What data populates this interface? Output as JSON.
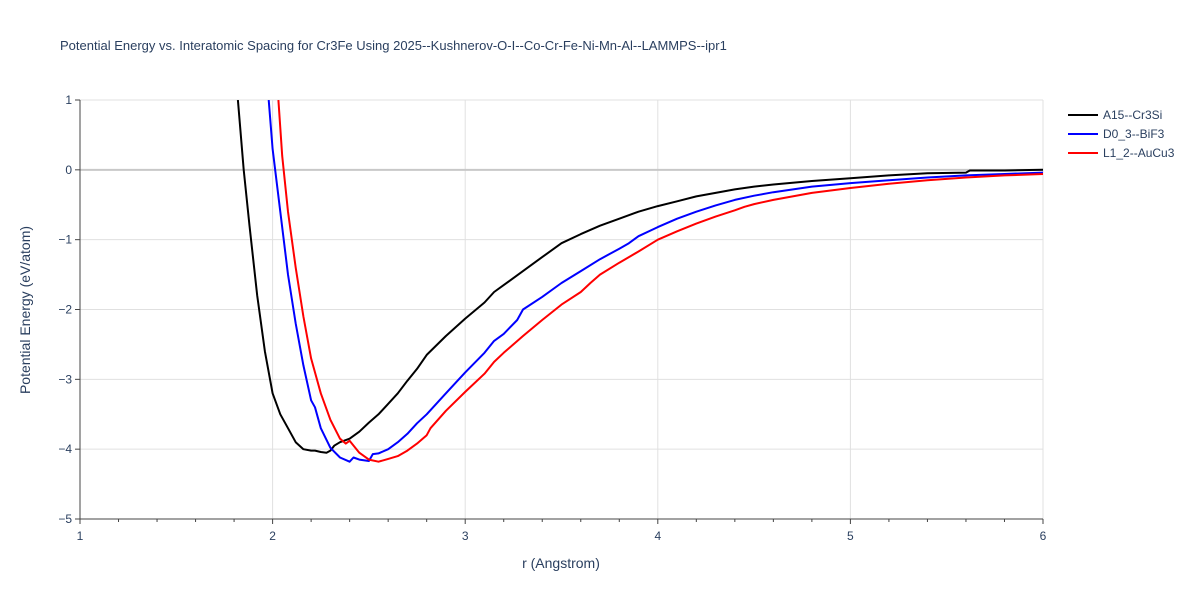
{
  "chart_data": {
    "type": "line",
    "title": "Potential Energy vs. Interatomic Spacing for Cr3Fe Using 2025--Kushnerov-O-I--Co-Cr-Fe-Ni-Mn-Al--LAMMPS--ipr1",
    "xlabel": "r (Angstrom)",
    "ylabel": "Potential Energy (eV/atom)",
    "xlim": [
      1,
      6
    ],
    "ylim": [
      -5,
      1
    ],
    "xticks": [
      1,
      2,
      3,
      4,
      5,
      6
    ],
    "xtick_labels": [
      "1",
      "2",
      "3",
      "4",
      "5",
      "6"
    ],
    "yticks": [
      -5,
      -4,
      -3,
      -2,
      -1,
      0,
      1
    ],
    "ytick_labels": [
      "−5",
      "−4",
      "−3",
      "−2",
      "−1",
      "0",
      "1"
    ],
    "grid": true,
    "legend_position": "top-right",
    "series": [
      {
        "name": "A15--Cr3Si",
        "color": "#000000",
        "x": [
          1.82,
          1.85,
          1.88,
          1.92,
          1.96,
          2.0,
          2.04,
          2.08,
          2.12,
          2.16,
          2.2,
          2.22,
          2.25,
          2.28,
          2.3,
          2.32,
          2.35,
          2.4,
          2.45,
          2.5,
          2.55,
          2.6,
          2.65,
          2.7,
          2.75,
          2.8,
          2.9,
          3.0,
          3.1,
          3.15,
          3.2,
          3.3,
          3.4,
          3.5,
          3.6,
          3.7,
          3.8,
          3.9,
          4.0,
          4.1,
          4.2,
          4.3,
          4.4,
          4.5,
          4.6,
          4.8,
          5.0,
          5.2,
          5.4,
          5.6,
          5.62,
          5.8,
          6.0
        ],
        "y": [
          1.0,
          0.0,
          -0.8,
          -1.8,
          -2.6,
          -3.2,
          -3.5,
          -3.7,
          -3.9,
          -4.0,
          -4.02,
          -4.02,
          -4.04,
          -4.05,
          -4.02,
          -3.95,
          -3.9,
          -3.85,
          -3.75,
          -3.62,
          -3.5,
          -3.35,
          -3.2,
          -3.02,
          -2.85,
          -2.65,
          -2.38,
          -2.13,
          -1.9,
          -1.75,
          -1.65,
          -1.45,
          -1.25,
          -1.05,
          -0.92,
          -0.8,
          -0.7,
          -0.6,
          -0.52,
          -0.45,
          -0.38,
          -0.33,
          -0.28,
          -0.24,
          -0.21,
          -0.16,
          -0.12,
          -0.08,
          -0.05,
          -0.04,
          -0.01,
          -0.01,
          0.0
        ]
      },
      {
        "name": "D0_3--BiF3",
        "color": "#0000ff",
        "x": [
          1.98,
          2.0,
          2.04,
          2.08,
          2.12,
          2.16,
          2.2,
          2.22,
          2.25,
          2.3,
          2.35,
          2.4,
          2.42,
          2.45,
          2.5,
          2.52,
          2.55,
          2.6,
          2.65,
          2.7,
          2.75,
          2.8,
          2.9,
          3.0,
          3.1,
          3.15,
          3.2,
          3.27,
          3.3,
          3.4,
          3.5,
          3.6,
          3.7,
          3.8,
          3.85,
          3.9,
          4.0,
          4.1,
          4.2,
          4.3,
          4.4,
          4.5,
          4.6,
          4.8,
          5.0,
          5.2,
          5.4,
          5.6,
          5.8,
          6.0
        ],
        "y": [
          1.0,
          0.3,
          -0.6,
          -1.5,
          -2.2,
          -2.8,
          -3.3,
          -3.4,
          -3.7,
          -3.98,
          -4.12,
          -4.18,
          -4.12,
          -4.15,
          -4.17,
          -4.07,
          -4.06,
          -4.0,
          -3.9,
          -3.78,
          -3.63,
          -3.5,
          -3.2,
          -2.9,
          -2.62,
          -2.45,
          -2.35,
          -2.15,
          -2.0,
          -1.82,
          -1.62,
          -1.45,
          -1.28,
          -1.13,
          -1.05,
          -0.95,
          -0.82,
          -0.7,
          -0.6,
          -0.51,
          -0.43,
          -0.37,
          -0.32,
          -0.24,
          -0.19,
          -0.15,
          -0.11,
          -0.08,
          -0.06,
          -0.04
        ]
      },
      {
        "name": "L1_2--AuCu3",
        "color": "#ff0000",
        "x": [
          2.03,
          2.05,
          2.08,
          2.12,
          2.16,
          2.2,
          2.25,
          2.3,
          2.35,
          2.38,
          2.4,
          2.45,
          2.5,
          2.55,
          2.6,
          2.65,
          2.7,
          2.75,
          2.8,
          2.82,
          2.9,
          3.0,
          3.1,
          3.15,
          3.2,
          3.3,
          3.4,
          3.5,
          3.6,
          3.65,
          3.7,
          3.8,
          3.9,
          4.0,
          4.1,
          4.2,
          4.3,
          4.4,
          4.45,
          4.5,
          4.6,
          4.8,
          5.0,
          5.2,
          5.4,
          5.6,
          5.8,
          6.0
        ],
        "y": [
          1.0,
          0.2,
          -0.6,
          -1.4,
          -2.1,
          -2.7,
          -3.2,
          -3.58,
          -3.85,
          -3.92,
          -3.88,
          -4.05,
          -4.15,
          -4.18,
          -4.14,
          -4.1,
          -4.02,
          -3.92,
          -3.8,
          -3.7,
          -3.45,
          -3.18,
          -2.92,
          -2.75,
          -2.62,
          -2.38,
          -2.15,
          -1.93,
          -1.75,
          -1.62,
          -1.5,
          -1.33,
          -1.17,
          -1.0,
          -0.88,
          -0.77,
          -0.67,
          -0.58,
          -0.53,
          -0.49,
          -0.43,
          -0.33,
          -0.26,
          -0.2,
          -0.15,
          -0.11,
          -0.08,
          -0.06
        ]
      }
    ]
  }
}
